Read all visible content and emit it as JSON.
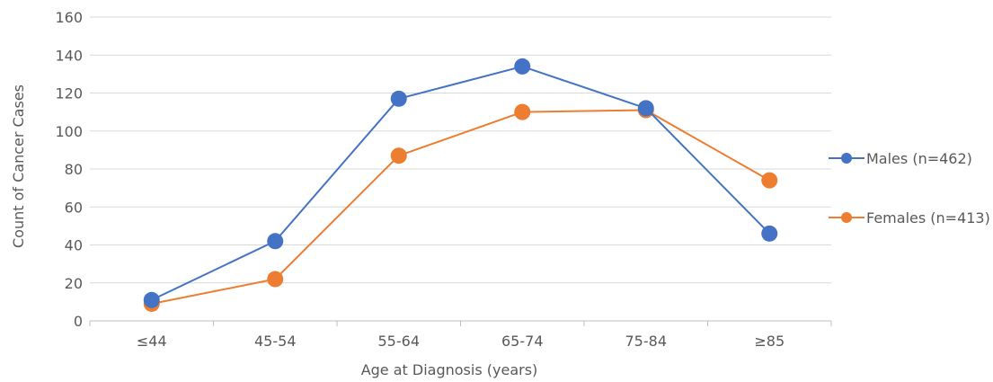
{
  "chart_data": {
    "type": "line",
    "title": "",
    "xlabel": "Age at Diagnosis (years)",
    "ylabel": "Count of Cancer Cases",
    "categories": [
      "≤44",
      "45-54",
      "55-64",
      "65-74",
      "75-84",
      "≥85"
    ],
    "ylim": [
      0,
      160
    ],
    "yticks": [
      0,
      20,
      40,
      60,
      80,
      100,
      120,
      140,
      160
    ],
    "grid": true,
    "legend": "right",
    "series": [
      {
        "name": "Males (n=462)",
        "color": "#4472C4",
        "values": [
          11,
          42,
          117,
          134,
          112,
          46
        ]
      },
      {
        "name": "Females (n=413)",
        "color": "#ED7D31",
        "values": [
          9,
          22,
          87,
          110,
          111,
          74
        ]
      }
    ]
  }
}
